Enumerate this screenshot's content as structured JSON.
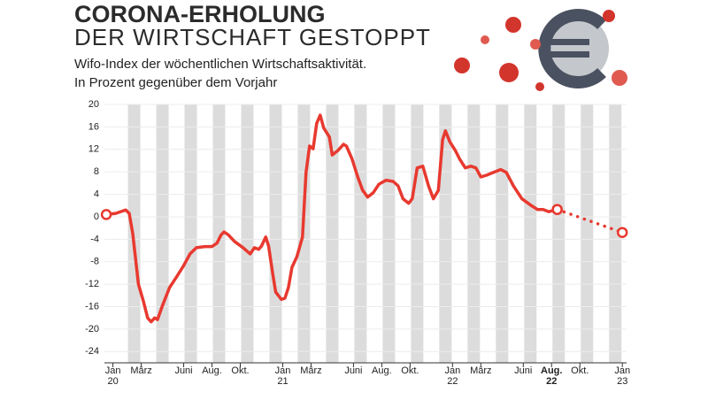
{
  "chart_data": {
    "type": "line",
    "title": "CORONA-ERHOLUNG",
    "title_line2": "DER WIRTSCHAFT GESTOPPT",
    "subtitle": "Wifo-Index der wöchentlichen Wirtschaftsaktivität.",
    "subtitle_line2": "In Prozent gegenüber dem Vorjahr",
    "xlim": [
      -0.6,
      36.3
    ],
    "xticks": [
      {
        "value": 0,
        "label": "Jan 20"
      },
      {
        "value": 2,
        "label": "März"
      },
      {
        "value": 5,
        "label": "Juni"
      },
      {
        "value": 7,
        "label": "Aug."
      },
      {
        "value": 9,
        "label": "Okt."
      },
      {
        "value": 12,
        "label": "Jan 21"
      },
      {
        "value": 14,
        "label": "März"
      },
      {
        "value": 17,
        "label": "Juni"
      },
      {
        "value": 19,
        "label": "Aug."
      },
      {
        "value": 21,
        "label": "Okt."
      },
      {
        "value": 24,
        "label": "Jan 22"
      },
      {
        "value": 26,
        "label": "März"
      },
      {
        "value": 29,
        "label": "Juni"
      },
      {
        "value": 31,
        "label": "Aug. 22",
        "bold": true
      },
      {
        "value": 33,
        "label": "Okt."
      },
      {
        "value": 36,
        "label": "Jan 23"
      }
    ],
    "ylim": [
      -26,
      20
    ],
    "yticks": [
      -24,
      -20,
      -16,
      -12,
      -8,
      -4,
      0,
      4,
      8,
      12,
      16,
      20
    ],
    "grid": true,
    "series": [
      {
        "color": "#e8392f",
        "style": "solid",
        "end_markers": true,
        "x": [
          -0.47,
          0.2,
          0.65,
          0.9,
          1.15,
          1.4,
          1.8,
          2.15,
          2.45,
          2.7,
          2.95,
          3.15,
          3.5,
          4.0,
          4.5,
          5.0,
          5.45,
          5.9,
          6.5,
          7.0,
          7.35,
          7.65,
          7.85,
          8.15,
          8.6,
          9.2,
          9.7,
          10.0,
          10.3,
          10.5,
          10.8,
          11.0,
          11.3,
          11.5,
          11.9,
          12.15,
          12.4,
          12.65,
          13.0,
          13.4,
          13.65,
          13.9,
          14.15,
          14.4,
          14.65,
          14.9,
          15.3,
          15.5,
          15.9,
          16.3,
          16.5,
          16.9,
          17.3,
          17.65,
          18.0,
          18.4,
          18.8,
          19.3,
          19.8,
          20.15,
          20.5,
          20.9,
          21.15,
          21.5,
          21.9,
          22.3,
          22.65,
          23.0,
          23.3,
          23.5,
          23.8,
          24.2,
          24.5,
          24.9,
          25.3,
          25.65,
          26.0,
          26.4,
          26.9,
          27.4,
          27.8,
          28.3,
          28.9,
          29.5,
          30.0,
          30.4,
          30.8,
          31.4
        ],
        "values": [
          0.4,
          0.6,
          1.0,
          1.2,
          0.6,
          -3,
          -12,
          -15,
          -18,
          -18.7,
          -18,
          -18.3,
          -15.8,
          -12.6,
          -10.7,
          -8.7,
          -6.6,
          -5.5,
          -5.3,
          -5.3,
          -4.7,
          -3.2,
          -2.7,
          -3.2,
          -4.4,
          -5.5,
          -6.6,
          -5.5,
          -5.8,
          -5.2,
          -3.6,
          -5.2,
          -10.3,
          -13.4,
          -14.7,
          -14.5,
          -12.6,
          -9,
          -7.1,
          -3.6,
          7.9,
          12.6,
          12.1,
          16.6,
          18.1,
          15.8,
          14.2,
          11,
          11.8,
          12.9,
          12.6,
          10.3,
          7.1,
          4.7,
          3.5,
          4.3,
          5.8,
          6.5,
          6.3,
          5.5,
          3.2,
          2.4,
          3.2,
          8.7,
          9,
          5.5,
          3.2,
          4.7,
          13.7,
          15.3,
          13.4,
          11.8,
          10.3,
          8.7,
          9,
          8.7,
          7.1,
          7.4,
          7.9,
          8.4,
          7.9,
          5.5,
          3.2,
          2.1,
          1.3,
          1.3,
          0.9,
          1.3
        ]
      },
      {
        "color": "#e8392f",
        "style": "dotted",
        "end_markers": true,
        "x": [
          31.4,
          36.0
        ],
        "values": [
          1.3,
          -2.8
        ]
      }
    ]
  }
}
